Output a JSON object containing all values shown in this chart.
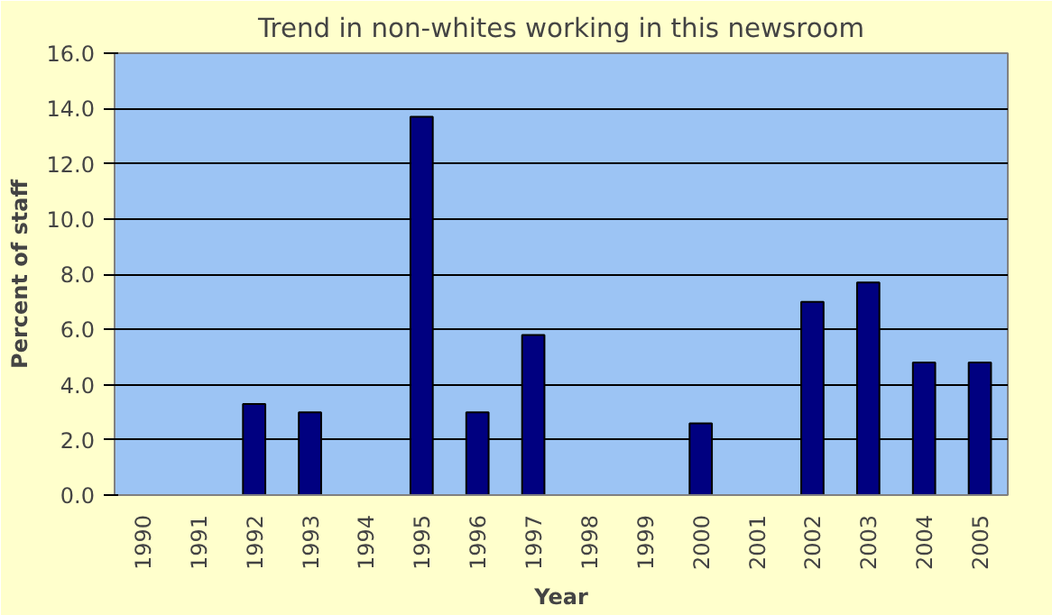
{
  "chart_data": {
    "type": "bar",
    "title": "Trend in non-whites working in this newsroom",
    "xlabel": "Year",
    "ylabel": "Percent of staff",
    "categories": [
      "1990",
      "1991",
      "1992",
      "1993",
      "1994",
      "1995",
      "1996",
      "1997",
      "1998",
      "1999",
      "2000",
      "2001",
      "2002",
      "2003",
      "2004",
      "2005"
    ],
    "values": [
      null,
      null,
      3.3,
      3.0,
      null,
      13.7,
      3.0,
      5.8,
      null,
      null,
      2.6,
      null,
      7.0,
      7.7,
      4.8,
      4.8
    ],
    "color": "#000080",
    "ylim": [
      0,
      16
    ],
    "yticks": [
      {
        "value": 0,
        "label": "0.0"
      },
      {
        "value": 2,
        "label": "2.0"
      },
      {
        "value": 4,
        "label": "4.0"
      },
      {
        "value": 6,
        "label": "6.0"
      },
      {
        "value": 8,
        "label": "8.0"
      },
      {
        "value": 10,
        "label": "10.0"
      },
      {
        "value": 12,
        "label": "12.0"
      },
      {
        "value": 14,
        "label": "14.0"
      },
      {
        "value": 16,
        "label": "16.0"
      }
    ],
    "grid": "y"
  }
}
